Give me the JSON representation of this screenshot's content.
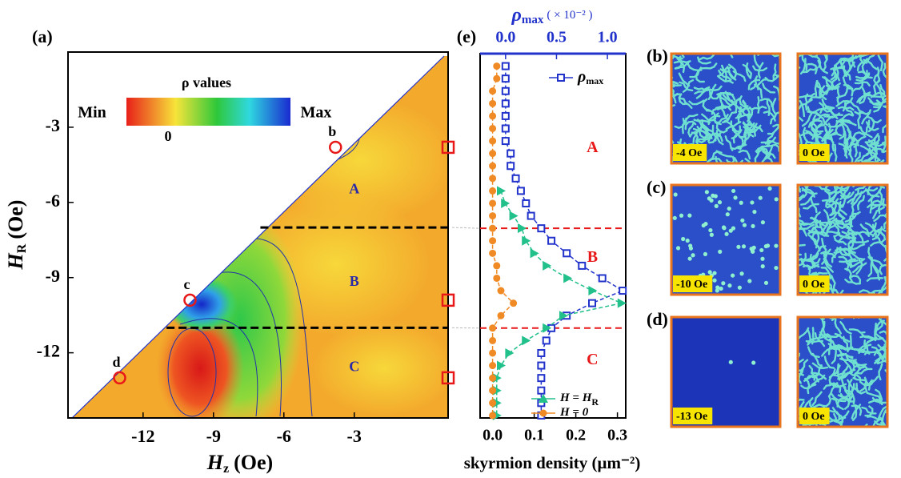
{
  "chart_data": [
    {
      "type": "heatmap",
      "panel_label": "(a)",
      "xlabel": "H",
      "xlabel_sub": "z",
      "xlabel_unit": "(Oe)",
      "ylabel": "H",
      "ylabel_sub": "R",
      "ylabel_unit": "(Oe)",
      "xlim": [
        -15.2,
        1.0
      ],
      "ylim": [
        -14.6,
        0
      ],
      "xticks": [
        -12,
        -9,
        -6,
        -3
      ],
      "yticks": [
        -3,
        -6,
        -9,
        -12
      ],
      "colorbar": {
        "title": "ρ values",
        "min_label": "Min",
        "max_label": "Max",
        "zero_label": "0"
      },
      "boundaries": [
        -7,
        -11
      ],
      "regions": [
        {
          "label": "A",
          "x": -3,
          "y": -5.5
        },
        {
          "label": "B",
          "x": -3,
          "y": -9.2
        },
        {
          "label": "C",
          "x": -3,
          "y": -12.6
        }
      ],
      "markers": [
        {
          "label": "b",
          "x": -3.8,
          "y": -3.8
        },
        {
          "label": "c",
          "x": -10,
          "y": -9.9
        },
        {
          "label": "d",
          "x": -13,
          "y": -13
        }
      ],
      "edge_markers": [
        -3.8,
        -9.9,
        -13
      ]
    },
    {
      "type": "line",
      "panel_label": "(e)",
      "xlabel": "skyrmion density (μm⁻²)",
      "x2label": "ρ",
      "x2label_sub": "max",
      "x2label_unit": "( × 10⁻² )",
      "xlim": [
        -0.03,
        0.32
      ],
      "x2lim": [
        -0.25,
        1.18
      ],
      "ylim": [
        -14.6,
        0
      ],
      "xticks": [
        {
          "value": 0,
          "label": "0.0"
        },
        0.1,
        0.2,
        0.3
      ],
      "x2ticks": [
        {
          "value": 0,
          "label": "0.0"
        },
        0.5,
        {
          "value": 1,
          "label": "1.0"
        }
      ],
      "y": [
        -0.5,
        -1,
        -1.5,
        -2,
        -2.5,
        -3,
        -3.5,
        -4,
        -4.5,
        -5,
        -5.5,
        -6,
        -6.5,
        -7,
        -7.5,
        -8,
        -8.5,
        -9,
        -9.5,
        -10,
        -10.5,
        -11,
        -11.5,
        -12,
        -12.5,
        -13,
        -13.5,
        -14,
        -14.5
      ],
      "series": [
        {
          "name": "ρ",
          "name_sub": "max",
          "axis": "x2",
          "color": "#2233cc",
          "marker": "square",
          "values": [
            0,
            0,
            0,
            0,
            0,
            0,
            0,
            0.05,
            0.05,
            0.1,
            0.15,
            0.2,
            0.25,
            0.35,
            0.45,
            0.6,
            0.75,
            0.95,
            1.15,
            0.85,
            0.6,
            0.45,
            0.4,
            0.35,
            0.35,
            0.35,
            0.35,
            0.35,
            0.35
          ]
        },
        {
          "name": "H = H",
          "name_sub": "R",
          "color": "#22c08a",
          "marker": "triangle",
          "values": [
            null,
            null,
            null,
            null,
            null,
            null,
            null,
            null,
            null,
            null,
            0.02,
            0.03,
            0.05,
            0.07,
            0.08,
            0.1,
            0.13,
            0.18,
            0.24,
            0.31,
            0.17,
            0.13,
            0.08,
            0.04,
            0.02,
            0.01,
            0.01,
            0.01,
            0.01
          ]
        },
        {
          "name": "H = 0",
          "color": "#f08a24",
          "marker": "circle",
          "values": [
            0.01,
            0.01,
            0,
            0,
            0,
            0,
            0,
            0,
            0,
            0,
            0,
            0,
            0,
            0,
            0,
            0,
            0.01,
            0.01,
            0.02,
            0.05,
            0.02,
            0,
            0,
            0,
            0,
            0,
            0,
            0,
            0
          ]
        }
      ],
      "boundaries": [
        -7,
        -11
      ],
      "regions": [
        {
          "label": "A",
          "x": 0.24,
          "y": -3.8
        },
        {
          "label": "B",
          "x": 0.24,
          "y": -8.2
        },
        {
          "label": "C",
          "x": 0.24,
          "y": -12.3
        }
      ]
    }
  ],
  "images": {
    "panels": [
      {
        "label": "(b)",
        "captions": [
          "-4 Oe",
          "0 Oe"
        ]
      },
      {
        "label": "(c)",
        "captions": [
          "-10 Oe",
          "0 Oe"
        ]
      },
      {
        "label": "(d)",
        "captions": [
          "-13 Oe",
          "0 Oe"
        ]
      }
    ]
  }
}
